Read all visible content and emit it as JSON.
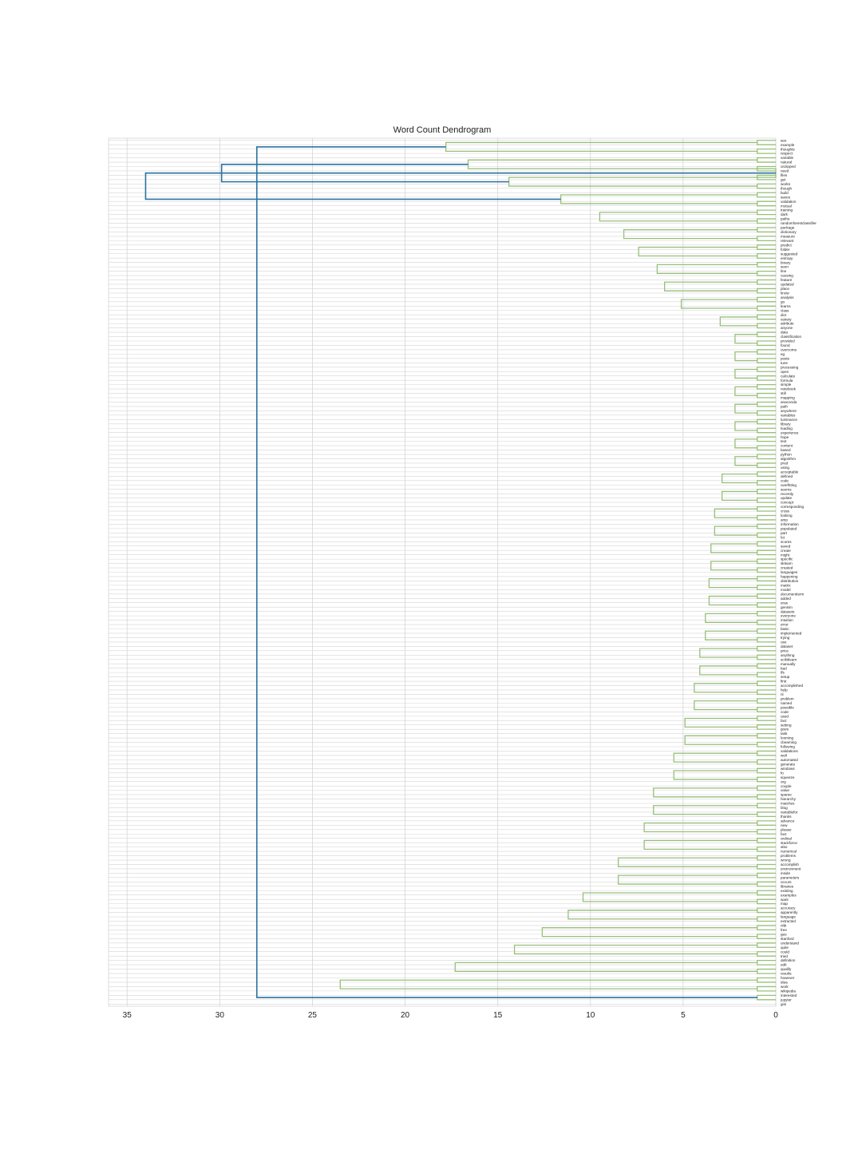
{
  "chart_data": {
    "type": "dendrogram",
    "title": "Word Count Dendrogram",
    "orientation": "left",
    "xlim": [
      36,
      0
    ],
    "x_ticks": [
      35,
      30,
      25,
      20,
      15,
      10,
      5,
      0
    ],
    "grid": true,
    "colors": {
      "cluster": "#97bf7a",
      "above_threshold": "#2a72a1",
      "grid": "#d5d5d5"
    },
    "leaves": [
      "see",
      "example",
      "thoughts",
      "respect",
      "variable",
      "natural",
      "unzipped",
      "need",
      "files",
      "get",
      "works",
      "though",
      "build",
      "saves",
      "validation",
      "mutual",
      "training",
      "dark",
      "paths",
      "randomforestclassifier",
      "package",
      "dictionary",
      "measure",
      "relevant",
      "predict",
      "folder",
      "suggested",
      "entropy",
      "binary",
      "seen",
      "line",
      "causing",
      "feature",
      "updated",
      "place",
      "know",
      "analysis",
      "go",
      "learns",
      "class",
      "dict",
      "variety",
      "attribute",
      "anyone",
      "data",
      "classification",
      "provided",
      "found",
      "overcome",
      "eg",
      "posts",
      "tune",
      "processing",
      "open",
      "calculate",
      "formula",
      "simple",
      "notebook",
      "still",
      "mapping",
      "anaconda",
      "path",
      "anywhere",
      "variables",
      "luminance",
      "library",
      "loading",
      "experience",
      "hope",
      "text",
      "content",
      "based",
      "python",
      "algorithm",
      "pred",
      "using",
      "acceptable",
      "defined",
      "code",
      "overfitting",
      "seems",
      "recently",
      "update",
      "concept",
      "corresponding",
      "cross",
      "looking",
      "amp",
      "information",
      "populated",
      "part",
      "lot",
      "scores",
      "saved",
      "create",
      "might",
      "specific",
      "sklearn",
      "created",
      "languages",
      "happening",
      "distribution",
      "matrix",
      "model",
      "documentterm",
      "added",
      "eras",
      "gensim",
      "datasets",
      "everyone",
      "intuition",
      "error",
      "basic",
      "implemented",
      "trying",
      "use",
      "dataset",
      "price",
      "anything",
      "scikitlearn",
      "manually",
      "bad",
      "tfs",
      "setup",
      "first",
      "accomplished",
      "help",
      "nl",
      "problem",
      "named",
      "possible",
      "code",
      "used",
      "fact",
      "setting",
      "goes",
      "task",
      "looming",
      "cbeaming",
      "following",
      "validations",
      "well",
      "automated",
      "generate",
      "windows",
      "fo",
      "squeeze",
      "org",
      "couple",
      "value",
      "sparse",
      "hierarchy",
      "matches",
      "blog",
      "variablefor",
      "thanks",
      "advance",
      "new",
      "please",
      "fact",
      "ordinal",
      "stackforce",
      "also",
      "numerical",
      "problems",
      "wrong",
      "accomplish",
      "environment",
      "inside",
      "parameters",
      "occurs",
      "libraries",
      "existing",
      "examples",
      "want",
      "map",
      "accuracy",
      "apparently",
      "language",
      "extracted",
      "nltk",
      "free",
      "gee",
      "stanford",
      "understand",
      "quite",
      "could",
      "tried",
      "definition",
      "edit",
      "qualify",
      "results",
      "however",
      "idea",
      "work",
      "wikipedia",
      "interested",
      "jupyter",
      "gini"
    ],
    "merges": [
      [
        0,
        1,
        1
      ],
      [
        2,
        3,
        1
      ],
      [
        4,
        5,
        1
      ],
      [
        6,
        7,
        1
      ],
      [
        8,
        9,
        1
      ],
      [
        10,
        11,
        1
      ],
      [
        12,
        13,
        1
      ],
      [
        14,
        15,
        1
      ],
      [
        16,
        17,
        1
      ],
      [
        18,
        19,
        1
      ],
      [
        20,
        21,
        1
      ],
      [
        22,
        23,
        1
      ],
      [
        24,
        25,
        1
      ],
      [
        26,
        27,
        1
      ],
      [
        28,
        29,
        1
      ],
      [
        30,
        31,
        1
      ],
      [
        32,
        33,
        1
      ],
      [
        34,
        35,
        1
      ],
      [
        36,
        37,
        1
      ],
      [
        38,
        39,
        1
      ],
      [
        40,
        41,
        1
      ],
      [
        42,
        43,
        1
      ],
      [
        44,
        45,
        1
      ],
      [
        46,
        47,
        1
      ],
      [
        48,
        49,
        1
      ],
      [
        50,
        51,
        1
      ],
      [
        52,
        53,
        1
      ],
      [
        54,
        55,
        1
      ],
      [
        56,
        57,
        1
      ],
      [
        58,
        59,
        1
      ],
      [
        60,
        61,
        1
      ],
      [
        62,
        63,
        1
      ],
      [
        64,
        65,
        1
      ],
      [
        66,
        67,
        1
      ],
      [
        68,
        69,
        1
      ],
      [
        70,
        71,
        1
      ],
      [
        72,
        73,
        1
      ],
      [
        74,
        75,
        1
      ],
      [
        76,
        77,
        1
      ],
      [
        78,
        79,
        1
      ],
      [
        80,
        81,
        1
      ],
      [
        82,
        83,
        1
      ],
      [
        84,
        85,
        1
      ],
      [
        86,
        87,
        1
      ],
      [
        88,
        89,
        1
      ],
      [
        90,
        91,
        1
      ],
      [
        92,
        93,
        1
      ],
      [
        94,
        95,
        1
      ],
      [
        96,
        97,
        1
      ],
      [
        98,
        99,
        1
      ],
      [
        100,
        101,
        1
      ],
      [
        102,
        103,
        1
      ],
      [
        104,
        105,
        1
      ],
      [
        106,
        107,
        1
      ],
      [
        108,
        109,
        1
      ],
      [
        110,
        111,
        1
      ],
      [
        112,
        113,
        1
      ],
      [
        114,
        115,
        1
      ],
      [
        116,
        117,
        1
      ],
      [
        118,
        119,
        1
      ],
      [
        120,
        121,
        1
      ],
      [
        122,
        123,
        1
      ],
      [
        124,
        125,
        1
      ],
      [
        126,
        127,
        1
      ],
      [
        128,
        129,
        1
      ],
      [
        130,
        131,
        1
      ],
      [
        132,
        133,
        1
      ],
      [
        134,
        135,
        1
      ],
      [
        136,
        137,
        1
      ],
      [
        138,
        139,
        1
      ],
      [
        140,
        141,
        1
      ],
      [
        142,
        143,
        1
      ],
      [
        144,
        145,
        1
      ],
      [
        146,
        147,
        1
      ],
      [
        148,
        149,
        1
      ],
      [
        150,
        151,
        1
      ],
      [
        152,
        153,
        1
      ],
      [
        154,
        155,
        1
      ],
      [
        156,
        157,
        1
      ],
      [
        158,
        159,
        1
      ],
      [
        160,
        161,
        1
      ],
      [
        162,
        163,
        1
      ],
      [
        164,
        165,
        1
      ],
      [
        166,
        167,
        1
      ],
      [
        168,
        169,
        1
      ],
      [
        170,
        171,
        1
      ],
      [
        172,
        173,
        1
      ],
      [
        174,
        175,
        1
      ],
      [
        176,
        177,
        1
      ],
      [
        178,
        179,
        1
      ],
      [
        180,
        181,
        1
      ],
      [
        182,
        183,
        1
      ],
      [
        184,
        185,
        1
      ],
      [
        186,
        187,
        1
      ],
      [
        188,
        189,
        1
      ],
      [
        190,
        191,
        1
      ],
      [
        192,
        193,
        1
      ],
      [
        194,
        195,
        1
      ],
      [
        196,
        197,
        1
      ],
      [
        199,
        200,
        17.8
      ],
      [
        201,
        202,
        16.6
      ],
      [
        203,
        204,
        14.4
      ],
      [
        202,
        203,
        0
      ],
      [
        205,
        206,
        11.6
      ],
      [
        207,
        208,
        9.5
      ],
      [
        209,
        210,
        8.2
      ],
      [
        211,
        212,
        7.4
      ],
      [
        213,
        214,
        6.4
      ],
      [
        215,
        216,
        6.0
      ],
      [
        217,
        218,
        5.1
      ],
      [
        219,
        220,
        3.0
      ],
      [
        221,
        222,
        2.2
      ],
      [
        223,
        224,
        2.2
      ],
      [
        225,
        226,
        2.2
      ],
      [
        227,
        228,
        2.2
      ],
      [
        229,
        230,
        2.2
      ],
      [
        231,
        232,
        2.2
      ],
      [
        233,
        234,
        2.2
      ],
      [
        235,
        236,
        2.2
      ],
      [
        237,
        238,
        2.9
      ],
      [
        239,
        240,
        2.9
      ],
      [
        241,
        242,
        3.3
      ],
      [
        243,
        244,
        3.3
      ],
      [
        245,
        246,
        3.5
      ],
      [
        247,
        248,
        3.5
      ],
      [
        249,
        250,
        3.6
      ],
      [
        251,
        252,
        3.6
      ],
      [
        253,
        254,
        3.8
      ],
      [
        255,
        256,
        3.8
      ],
      [
        257,
        258,
        4.1
      ],
      [
        259,
        260,
        4.1
      ],
      [
        261,
        262,
        4.4
      ],
      [
        263,
        264,
        4.4
      ],
      [
        265,
        266,
        4.9
      ],
      [
        267,
        268,
        4.9
      ],
      [
        269,
        270,
        5.5
      ],
      [
        271,
        272,
        5.5
      ],
      [
        273,
        274,
        6.6
      ],
      [
        275,
        276,
        6.6
      ],
      [
        277,
        278,
        7.1
      ],
      [
        279,
        280,
        7.1
      ],
      [
        281,
        282,
        8.5
      ],
      [
        283,
        284,
        8.5
      ],
      [
        285,
        286,
        10.4
      ],
      [
        287,
        288,
        11.2
      ],
      [
        289,
        290,
        12.6
      ],
      [
        291,
        292,
        14.1
      ],
      [
        293,
        294,
        17.3
      ],
      [
        295,
        296,
        23.5
      ],
      [
        297,
        298,
        28.0
      ],
      [
        299,
        300,
        29.9
      ],
      [
        301,
        302,
        34.0
      ]
    ]
  }
}
